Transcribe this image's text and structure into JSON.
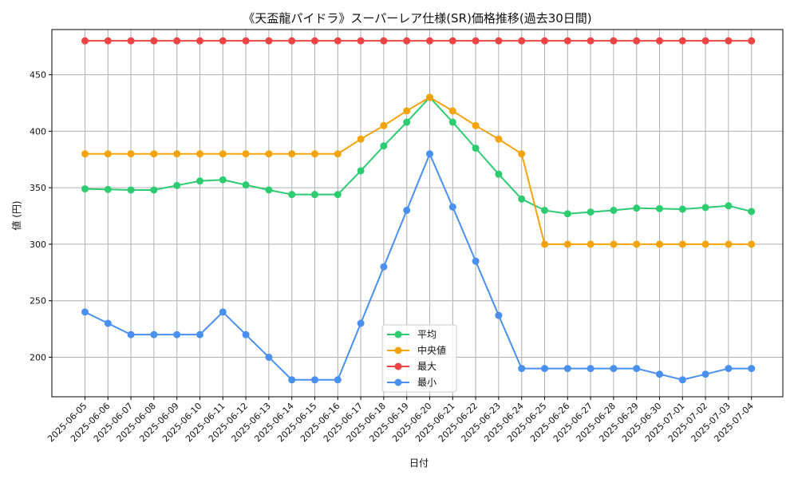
{
  "chart_data": {
    "type": "line",
    "title": "《天盃龍パイドラ》スーパーレア仕様(SR)価格推移(過去30日間)",
    "xlabel": "日付",
    "ylabel": "値 (円)",
    "ylim": [
      165,
      490
    ],
    "yticks": [
      200,
      250,
      300,
      350,
      400,
      450
    ],
    "grid": true,
    "legend_position": "lower-center",
    "categories": [
      "2025-06-05",
      "2025-06-06",
      "2025-06-07",
      "2025-06-08",
      "2025-06-09",
      "2025-06-10",
      "2025-06-11",
      "2025-06-12",
      "2025-06-13",
      "2025-06-14",
      "2025-06-15",
      "2025-06-16",
      "2025-06-17",
      "2025-06-18",
      "2025-06-19",
      "2025-06-20",
      "2025-06-21",
      "2025-06-22",
      "2025-06-23",
      "2025-06-24",
      "2025-06-25",
      "2025-06-26",
      "2025-06-27",
      "2025-06-28",
      "2025-06-29",
      "2025-06-30",
      "2025-07-01",
      "2025-07-02",
      "2025-07-03",
      "2025-07-04"
    ],
    "series": [
      {
        "name": "平均",
        "color": "#2ecc71",
        "values": [
          349,
          348.5,
          348,
          348,
          352,
          356,
          357,
          352.5,
          348,
          344,
          344,
          344,
          365,
          387,
          408,
          430,
          408,
          385,
          362,
          340,
          330,
          327,
          328.5,
          330,
          332,
          331.5,
          331,
          332.5,
          334,
          329
        ]
      },
      {
        "name": "中央値",
        "color": "#f5a30b",
        "values": [
          380,
          380,
          380,
          380,
          380,
          380,
          380,
          380,
          380,
          380,
          380,
          380,
          393,
          405,
          418,
          430,
          418,
          405,
          393,
          380,
          300,
          300,
          300,
          300,
          300,
          300,
          300,
          300,
          300,
          300
        ]
      },
      {
        "name": "最大",
        "color": "#ef4444",
        "values": [
          480,
          480,
          480,
          480,
          480,
          480,
          480,
          480,
          480,
          480,
          480,
          480,
          480,
          480,
          480,
          480,
          480,
          480,
          480,
          480,
          480,
          480,
          480,
          480,
          480,
          480,
          480,
          480,
          480,
          480
        ]
      },
      {
        "name": "最小",
        "color": "#4a90f0",
        "values": [
          240,
          230,
          220,
          220,
          220,
          220,
          240,
          220,
          200,
          180,
          180,
          180,
          230,
          280,
          330,
          380,
          333,
          285,
          237,
          190,
          190,
          190,
          190,
          190,
          190,
          185,
          180,
          185,
          190,
          190
        ]
      }
    ]
  }
}
